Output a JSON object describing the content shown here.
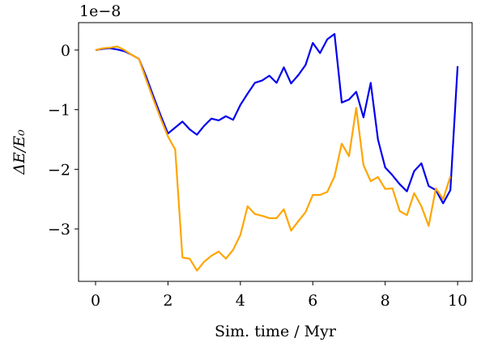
{
  "chart_data": {
    "type": "line",
    "xlabel": "Sim. time / Myr",
    "ylabel": "ΔE/E₀",
    "offset_text": "1e−8",
    "x": [
      0,
      0.2,
      0.4,
      0.6,
      0.8,
      1.0,
      1.2,
      1.4,
      1.6,
      1.8,
      2.0,
      2.2,
      2.4,
      2.6,
      2.8,
      3.0,
      3.2,
      3.4,
      3.6,
      3.8,
      4.0,
      4.2,
      4.4,
      4.6,
      4.8,
      5.0,
      5.2,
      5.4,
      5.6,
      5.8,
      6.0,
      6.2,
      6.4,
      6.6,
      6.8,
      7.0,
      7.2,
      7.4,
      7.6,
      7.8,
      8.0,
      8.2,
      8.4,
      8.6,
      8.8,
      9.0,
      9.2,
      9.4,
      9.6,
      9.8,
      10.0
    ],
    "series": [
      {
        "color": "#0000ee",
        "values": [
          0,
          0.02,
          0.03,
          0.01,
          -0.02,
          -0.08,
          -0.15,
          -0.45,
          -0.78,
          -1.1,
          -1.4,
          -1.3,
          -1.2,
          -1.33,
          -1.42,
          -1.27,
          -1.15,
          -1.18,
          -1.11,
          -1.17,
          -0.92,
          -0.73,
          -0.55,
          -0.51,
          -0.43,
          -0.55,
          -0.29,
          -0.56,
          -0.42,
          -0.25,
          0.12,
          -0.05,
          0.18,
          0.27,
          -0.88,
          -0.83,
          -0.7,
          -1.13,
          -0.55,
          -1.5,
          -1.97,
          -2.1,
          -2.25,
          -2.37,
          -2.03,
          -1.9,
          -2.28,
          -2.35,
          -2.57,
          -2.35,
          -0.27
        ]
      },
      {
        "color": "#ffa500",
        "values": [
          0,
          0.03,
          0.04,
          0.06,
          0.0,
          -0.08,
          -0.15,
          -0.5,
          -0.83,
          -1.15,
          -1.45,
          -1.67,
          -3.48,
          -3.5,
          -3.7,
          -3.55,
          -3.45,
          -3.38,
          -3.5,
          -3.35,
          -3.1,
          -2.62,
          -2.75,
          -2.78,
          -2.82,
          -2.82,
          -2.67,
          -3.03,
          -2.87,
          -2.72,
          -2.43,
          -2.43,
          -2.38,
          -2.12,
          -1.57,
          -1.78,
          -0.97,
          -1.93,
          -2.2,
          -2.13,
          -2.33,
          -2.32,
          -2.7,
          -2.77,
          -2.4,
          -2.62,
          -2.95,
          -2.32,
          -2.5,
          -2.12,
          null
        ]
      }
    ],
    "xlim": [
      -0.47,
      10.4
    ],
    "xticks": [
      0,
      2,
      4,
      6,
      8,
      10
    ],
    "ylim": [
      -3.88,
      0.46
    ],
    "yticks": [
      {
        "value": -3,
        "label": "−3"
      },
      {
        "value": -2,
        "label": "−2"
      },
      {
        "value": -1,
        "label": "−1"
      },
      0
    ],
    "grid": false
  }
}
